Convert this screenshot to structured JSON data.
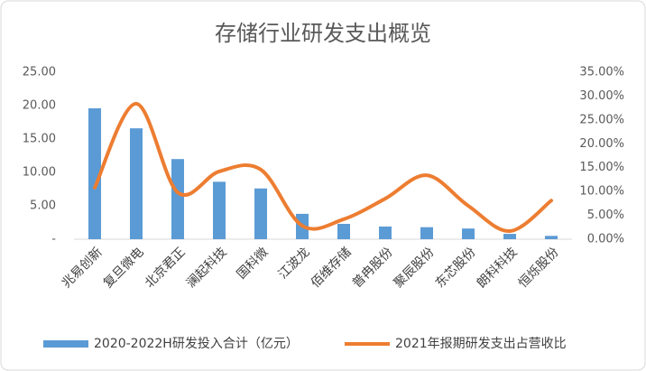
{
  "chart_data": {
    "type": "bar-line",
    "title": "存储行业研发支出概览",
    "categories": [
      "兆易创新",
      "复旦微电",
      "北京君正",
      "澜起科技",
      "国科微",
      "江波龙",
      "佰维存储",
      "普冉股份",
      "聚辰股份",
      "东芯股份",
      "朗科科技",
      "恒烁股份"
    ],
    "series": [
      {
        "name": "2020-2022H研发投入合计（亿元）",
        "color": "#5b9bd5",
        "values": [
          19.6,
          16.6,
          12.0,
          8.6,
          7.6,
          3.8,
          2.3,
          1.9,
          1.8,
          1.6,
          0.8,
          0.5
        ]
      },
      {
        "name": "2021年报期研发支出占营收比",
        "color": "#ed7d31",
        "axis": "y2",
        "values": [
          10.8,
          28.4,
          9.8,
          14.2,
          14.6,
          2.8,
          4.2,
          8.5,
          13.4,
          7.0,
          1.7,
          8.1
        ]
      }
    ],
    "ylim": [
      0,
      25
    ],
    "yticks": [
      {
        "value": 0,
        "label": "-"
      },
      {
        "value": 5,
        "label": "5.00"
      },
      {
        "value": 10,
        "label": "10.00"
      },
      {
        "value": 15,
        "label": "15.00"
      },
      {
        "value": 20,
        "label": "20.00"
      },
      {
        "value": 25,
        "label": "25.00"
      }
    ],
    "y2lim": [
      0,
      35
    ],
    "y2ticks": [
      {
        "value": 0,
        "label": "0.00%"
      },
      {
        "value": 5,
        "label": "5.00%"
      },
      {
        "value": 10,
        "label": "10.00%"
      },
      {
        "value": 15,
        "label": "15.00%"
      },
      {
        "value": 20,
        "label": "20.00%"
      },
      {
        "value": 25,
        "label": "25.00%"
      },
      {
        "value": 30,
        "label": "30.00%"
      },
      {
        "value": 35,
        "label": "35.00%"
      }
    ]
  }
}
